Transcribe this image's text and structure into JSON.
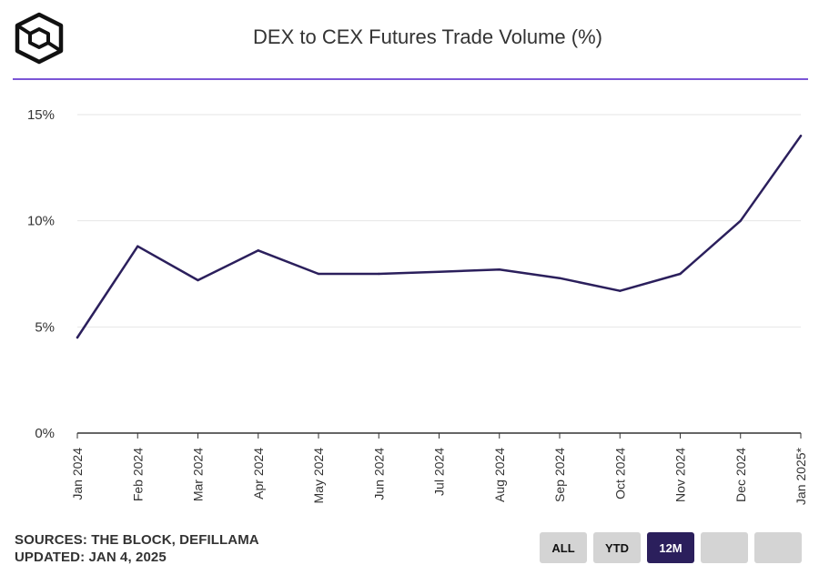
{
  "header": {
    "title": "DEX to CEX Futures Trade Volume (%)"
  },
  "footer": {
    "sources": "SOURCES: THE BLOCK, DEFILLAMA",
    "updated": "UPDATED: JAN 4, 2025",
    "range_buttons": [
      {
        "label": "ALL",
        "active": false
      },
      {
        "label": "YTD",
        "active": false
      },
      {
        "label": "12M",
        "active": true
      },
      {
        "label": "",
        "active": false
      },
      {
        "label": "",
        "active": false
      }
    ]
  },
  "colors": {
    "line": "#2b1f5c",
    "accent_rule": "#7b55d6",
    "grid": "#e6e6e6",
    "axis": "#333333",
    "button_bg": "#d4d4d4",
    "button_active_bg": "#2b1f5c"
  },
  "chart_data": {
    "type": "line",
    "title": "DEX to CEX Futures Trade Volume (%)",
    "xlabel": "",
    "ylabel": "",
    "categories": [
      "Jan 2024",
      "Feb 2024",
      "Mar 2024",
      "Apr 2024",
      "May 2024",
      "Jun 2024",
      "Jul 2024",
      "Aug 2024",
      "Sep 2024",
      "Oct 2024",
      "Nov 2024",
      "Dec 2024",
      "Jan 2025*"
    ],
    "series": [
      {
        "values": [
          4.5,
          8.8,
          7.2,
          8.6,
          7.5,
          7.5,
          7.6,
          7.7,
          7.3,
          6.7,
          7.5,
          10.0,
          14.0
        ]
      }
    ],
    "ylim": [
      0,
      15
    ],
    "yticks": [
      0,
      5,
      10,
      15
    ],
    "ytick_labels": [
      "0%",
      "5%",
      "10%",
      "15%"
    ],
    "grid": true,
    "legend": "none"
  }
}
